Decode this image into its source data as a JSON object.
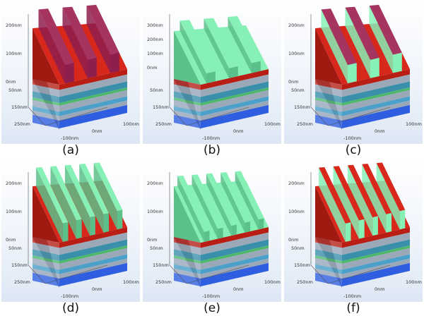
{
  "panels": [
    {
      "caption": "(a)",
      "z_ticks": [
        "200nm",
        "100nm",
        "0nm"
      ],
      "y_ticks": [
        "50nm",
        "150nm",
        "250nm"
      ],
      "x_ticks": [
        "-100nm",
        "0nm",
        "100nm"
      ],
      "layer": "red-grating"
    },
    {
      "caption": "(b)",
      "z_ticks": [
        "300nm",
        "200nm",
        "100nm",
        "0nm"
      ],
      "y_ticks": [
        "50nm",
        "150nm",
        "250nm"
      ],
      "x_ticks": [
        "-100nm",
        "0nm",
        "100nm"
      ],
      "layer": "green-conformal"
    },
    {
      "caption": "(c)",
      "z_ticks": [
        "200nm",
        "100nm",
        "0nm"
      ],
      "y_ticks": [
        "50nm",
        "150nm",
        "250nm"
      ],
      "x_ticks": [
        "-100nm",
        "0nm",
        "100nm"
      ],
      "layer": "red-grating-green-sides"
    },
    {
      "caption": "(d)",
      "z_ticks": [
        "200nm",
        "100nm",
        "0nm"
      ],
      "y_ticks": [
        "50nm",
        "150nm",
        "250nm"
      ],
      "x_ticks": [
        "-100nm",
        "0nm",
        "100nm"
      ],
      "layer": "green-double"
    },
    {
      "caption": "(e)",
      "z_ticks": [
        "200nm",
        "100nm",
        "0nm"
      ],
      "y_ticks": [
        "50nm",
        "150nm",
        "250nm"
      ],
      "x_ticks": [
        "-100nm",
        "0nm",
        "100nm"
      ],
      "layer": "green-conformal-double"
    },
    {
      "caption": "(f)",
      "z_ticks": [
        "200nm",
        "100nm",
        "0nm"
      ],
      "y_ticks": [
        "50nm",
        "150nm",
        "250nm"
      ],
      "x_ticks": [
        "-100nm",
        "0nm",
        "100nm"
      ],
      "layer": "red-green-double"
    }
  ],
  "colors": {
    "grating_dark": "#8e1e4e",
    "grating_top": "#a53560",
    "red_layer": "#d8271b",
    "red_front": "#b81e14",
    "green_conformal": "#86f0b6",
    "green_front": "#5cc08a",
    "block_side": "#707a86",
    "stripe_blue": "#4aa0c8",
    "stripe_teal": "#3a8faa",
    "stripe_gray": "#9aa8b8",
    "stripe_green": "#4cb86a",
    "base_blue": "#2f5fe0"
  }
}
